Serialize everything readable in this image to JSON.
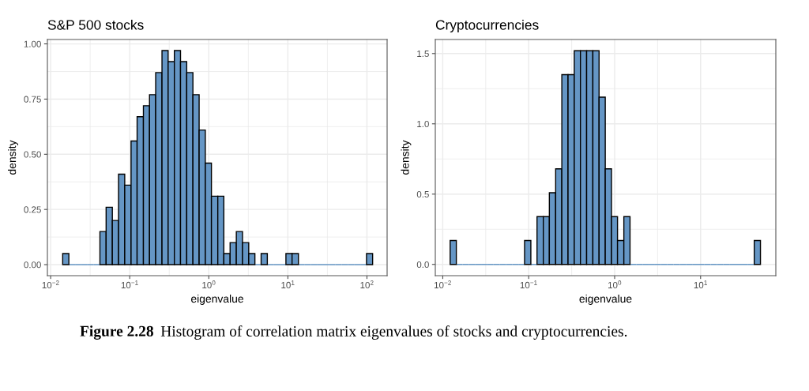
{
  "chart_data": [
    {
      "type": "histogram",
      "title": "S&P 500 stocks",
      "xlabel": "eigenvalue",
      "ylabel": "density",
      "color": "#6596c5",
      "log": "x",
      "grid": true,
      "bins": [
        0.0142,
        0.017,
        0.0204,
        0.0244,
        0.0293,
        0.0351,
        0.042,
        0.0503,
        0.0603,
        0.0722,
        0.0865,
        0.104,
        0.124,
        0.149,
        0.178,
        0.213,
        0.256,
        0.306,
        0.367,
        0.439,
        0.526,
        0.63,
        0.755,
        0.904,
        1.08,
        1.3,
        1.55,
        1.86,
        2.23,
        2.67,
        3.2,
        3.83,
        4.59,
        5.5,
        6.59,
        7.89,
        9.45,
        11.3,
        13.6,
        16.2,
        19.5,
        23.3,
        27.9,
        33.4,
        40,
        48,
        57.5,
        68.8,
        82.5,
        98.8,
        118
      ],
      "values": [
        0.05,
        0,
        0,
        0,
        0,
        0,
        0.15,
        0.26,
        0.2,
        0.41,
        0.36,
        0.56,
        0.67,
        0.72,
        0.77,
        0.87,
        0.97,
        0.92,
        0.97,
        0.92,
        0.87,
        0.77,
        0.61,
        0.46,
        0.31,
        0.31,
        0.05,
        0.1,
        0.15,
        0.1,
        0.05,
        0,
        0.05,
        0,
        0,
        0,
        0.05,
        0.05,
        0,
        0,
        0,
        0,
        0,
        0,
        0,
        0,
        0,
        0,
        0,
        0.05
      ],
      "xlim": [
        0.0091,
        180
      ],
      "xticks": [
        {
          "value": 0.01,
          "label": "10$^{−2}$"
        },
        {
          "value": 0.1,
          "label": "10$^{−1}$"
        },
        {
          "value": 1,
          "label": "10$^{0}$"
        },
        {
          "value": 10,
          "label": "10$^{1}$"
        },
        {
          "value": 100,
          "label": "10$^{2}$"
        }
      ],
      "ylim": [
        -0.05,
        1.02
      ],
      "yticks": [
        {
          "value": 0,
          "label": "0.00"
        },
        {
          "value": 0.25,
          "label": "0.25"
        },
        {
          "value": 0.5,
          "label": "0.50"
        },
        {
          "value": 0.75,
          "label": "0.75"
        },
        {
          "value": 1,
          "label": "1.00"
        }
      ]
    },
    {
      "type": "histogram",
      "title": "Cryptocurrencies",
      "xlabel": "eigenvalue",
      "ylabel": "density",
      "color": "#6596c5",
      "log": "x",
      "grid": true,
      "bins": [
        0.0122,
        0.0144,
        0.017,
        0.0201,
        0.0237,
        0.028,
        0.033,
        0.039,
        0.0461,
        0.0544,
        0.0643,
        0.0759,
        0.0896,
        0.106,
        0.125,
        0.148,
        0.174,
        0.206,
        0.243,
        0.287,
        0.339,
        0.4,
        0.472,
        0.558,
        0.659,
        0.778,
        0.919,
        1.08,
        1.28,
        1.51,
        1.79,
        2.11,
        2.49,
        2.94,
        3.47,
        4.1,
        4.84,
        5.72,
        6.75,
        7.98,
        9.42,
        11.1,
        13.1,
        15.5,
        18.3,
        21.6,
        25.5,
        30.2,
        35.6,
        42.1,
        49.7
      ],
      "values": [
        0.17,
        0,
        0,
        0,
        0,
        0,
        0,
        0,
        0,
        0,
        0,
        0,
        0.17,
        0,
        0.34,
        0.34,
        0.51,
        0.68,
        1.35,
        1.35,
        1.52,
        1.52,
        1.52,
        1.52,
        1.19,
        0.68,
        0.34,
        0.17,
        0.34,
        0,
        0,
        0,
        0,
        0,
        0,
        0,
        0,
        0,
        0,
        0,
        0,
        0,
        0,
        0,
        0,
        0,
        0,
        0,
        0,
        0.17
      ],
      "xlim": [
        0.0082,
        75
      ],
      "xticks": [
        {
          "value": 0.01,
          "label": "10$^{−2}$"
        },
        {
          "value": 0.1,
          "label": "10$^{−1}$"
        },
        {
          "value": 1,
          "label": "10$^{0}$"
        },
        {
          "value": 10,
          "label": "10$^{1}$"
        }
      ],
      "ylim": [
        -0.08,
        1.6
      ],
      "yticks": [
        {
          "value": 0,
          "label": "0.0"
        },
        {
          "value": 0.5,
          "label": "0.5"
        },
        {
          "value": 1,
          "label": "1.0"
        },
        {
          "value": 1.5,
          "label": "1.5"
        }
      ],
      "annotations": [
        "Figure 2.28",
        "Histogram of correlation matrix eigenvalues of stocks and cryptocurrencies."
      ]
    }
  ]
}
